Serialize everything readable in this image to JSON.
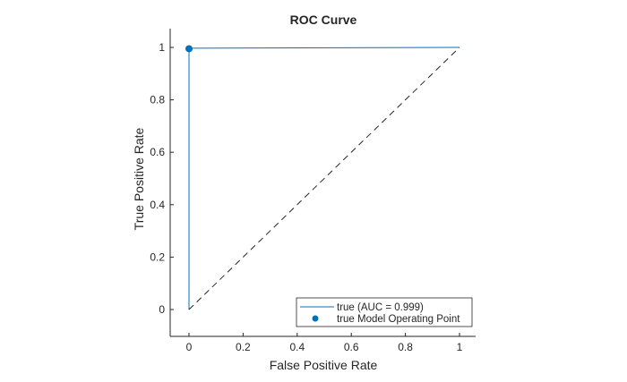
{
  "chart_data": {
    "type": "line",
    "title": "ROC Curve",
    "xlabel": "False Positive Rate",
    "ylabel": "True Positive Rate",
    "xlim": [
      -0.07,
      1.07
    ],
    "ylim": [
      -0.1,
      1.07
    ],
    "xticks": [
      0,
      0.2,
      0.4,
      0.6,
      0.8,
      1
    ],
    "xtick_labels": [
      "0",
      "0.2",
      "0.4",
      "0.6",
      "0.8",
      "1"
    ],
    "yticks": [
      0,
      0.2,
      0.4,
      0.6,
      0.8,
      1
    ],
    "ytick_labels": [
      "0",
      "0.2",
      "0.4",
      "0.6",
      "0.8",
      "1"
    ],
    "grid": false,
    "series": [
      {
        "name": "true (AUC = 0.999)",
        "x": [
          0,
          0,
          1
        ],
        "y": [
          0,
          0.997,
          1
        ],
        "color": "#0072BD",
        "style": "solid"
      },
      {
        "name": "diagonal",
        "x": [
          0,
          1
        ],
        "y": [
          0,
          1
        ],
        "color": "#262626",
        "style": "dashed"
      }
    ],
    "operating_point": {
      "name": "true Model Operating Point",
      "x": 0,
      "y": 0.995,
      "color": "#0072BD"
    },
    "legend": {
      "placement": "bottom-right",
      "entries": [
        "true (AUC = 0.999)",
        "true Model Operating Point"
      ]
    }
  }
}
